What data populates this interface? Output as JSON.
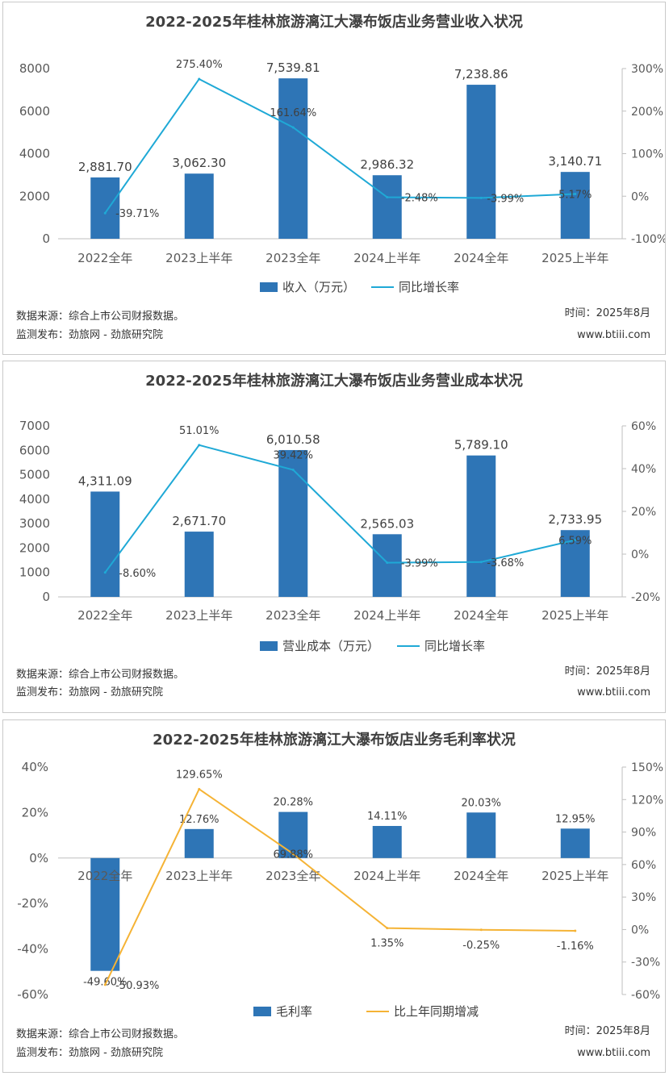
{
  "charts": [
    {
      "title": "2022-2025年桂林旅游漓江大瀑布饭店业务营业收入状况",
      "footer": {
        "source": "数据来源：综合上市公司财报数据。",
        "publisher": "监测发布：劲旅网 - 劲旅研究院",
        "time": "时间：2025年8月",
        "site": "www.btiii.com"
      }
    },
    {
      "title": "2022-2025年桂林旅游漓江大瀑布饭店业务营业成本状况",
      "footer": {
        "source": "数据来源：综合上市公司财报数据。",
        "publisher": "监测发布：劲旅网 - 劲旅研究院",
        "time": "时间：2025年8月",
        "site": "www.btiii.com"
      }
    },
    {
      "title": "2022-2025年桂林旅游漓江大瀑布饭店业务毛利率状况",
      "footer": {
        "source": "数据来源：综合上市公司财报数据。",
        "publisher": "监测发布：劲旅网 - 劲旅研究院",
        "time": "时间：2025年8月",
        "site": "www.btiii.com"
      }
    }
  ],
  "chart_data": [
    {
      "type": "bar+line",
      "title": "2022-2025年桂林旅游漓江大瀑布饭店业务营业收入状况",
      "categories": [
        "2022全年",
        "2023上半年",
        "2023全年",
        "2024上半年",
        "2024全年",
        "2025上半年"
      ],
      "series": [
        {
          "name": "收入（万元）",
          "kind": "bar",
          "axis": "left",
          "color": "#2e75b6",
          "values": [
            2881.7,
            3062.3,
            7539.81,
            2986.32,
            7238.86,
            3140.71
          ],
          "labels": [
            "2,881.70",
            "3,062.30",
            "7,539.81",
            "2,986.32",
            "7,238.86",
            "3,140.71"
          ]
        },
        {
          "name": "同比增长率",
          "kind": "line",
          "axis": "right",
          "color": "#1fa9d6",
          "values": [
            -39.71,
            275.4,
            161.64,
            -2.48,
            -3.99,
            5.17
          ],
          "labels": [
            "-39.71%",
            "275.40%",
            "161.64%",
            "-2.48%",
            "-3.99%",
            "5.17%"
          ]
        }
      ],
      "left_axis": {
        "min": 0,
        "max": 8000,
        "ticks": [
          "0",
          "2000",
          "4000",
          "6000",
          "8000"
        ]
      },
      "right_axis": {
        "min": -100,
        "max": 300,
        "ticks": [
          "-100%",
          "0%",
          "100%",
          "200%",
          "300%"
        ]
      }
    },
    {
      "type": "bar+line",
      "title": "2022-2025年桂林旅游漓江大瀑布饭店业务营业成本状况",
      "categories": [
        "2022全年",
        "2023上半年",
        "2023全年",
        "2024上半年",
        "2024全年",
        "2025上半年"
      ],
      "series": [
        {
          "name": "营业成本（万元）",
          "kind": "bar",
          "axis": "left",
          "color": "#2e75b6",
          "values": [
            4311.09,
            2671.7,
            6010.58,
            2565.03,
            5789.1,
            2733.95
          ],
          "labels": [
            "4,311.09",
            "2,671.70",
            "6,010.58",
            "2,565.03",
            "5,789.10",
            "2,733.95"
          ]
        },
        {
          "name": "同比增长率",
          "kind": "line",
          "axis": "right",
          "color": "#1fa9d6",
          "values": [
            -8.6,
            51.01,
            39.42,
            -3.99,
            -3.68,
            6.59
          ],
          "labels": [
            "-8.60%",
            "51.01%",
            "39.42%",
            "-3.99%",
            "-3.68%",
            "6.59%"
          ]
        }
      ],
      "left_axis": {
        "min": 0,
        "max": 7000,
        "ticks": [
          "0",
          "1000",
          "2000",
          "3000",
          "4000",
          "5000",
          "6000",
          "7000"
        ]
      },
      "right_axis": {
        "min": -20,
        "max": 60,
        "ticks": [
          "-20%",
          "0%",
          "20%",
          "40%",
          "60%"
        ]
      }
    },
    {
      "type": "bar+line",
      "title": "2022-2025年桂林旅游漓江大瀑布饭店业务毛利率状况",
      "categories": [
        "2022全年",
        "2023上半年",
        "2023全年",
        "2024上半年",
        "2024全年",
        "2025上半年"
      ],
      "series": [
        {
          "name": "毛利率",
          "kind": "bar",
          "axis": "left",
          "color": "#2e75b6",
          "values": [
            -49.6,
            12.76,
            20.28,
            14.11,
            20.03,
            12.95
          ],
          "labels": [
            "-49.60%",
            "12.76%",
            "20.28%",
            "14.11%",
            "20.03%",
            "12.95%"
          ]
        },
        {
          "name": "比上年同期增减",
          "kind": "line",
          "axis": "right",
          "color": "#f5b335",
          "values": [
            -50.93,
            129.65,
            69.88,
            1.35,
            -0.25,
            -1.16
          ],
          "labels": [
            "-50.93%",
            "129.65%",
            "69.88%",
            "1.35%",
            "-0.25%",
            "-1.16%"
          ]
        }
      ],
      "left_axis": {
        "min": -60,
        "max": 40,
        "ticks": [
          "-60%",
          "-40%",
          "-20%",
          "0%",
          "20%",
          "40%"
        ]
      },
      "right_axis": {
        "min": -60,
        "max": 150,
        "ticks": [
          "-60%",
          "-30%",
          "0%",
          "30%",
          "60%",
          "90%",
          "120%",
          "150%"
        ]
      }
    }
  ]
}
